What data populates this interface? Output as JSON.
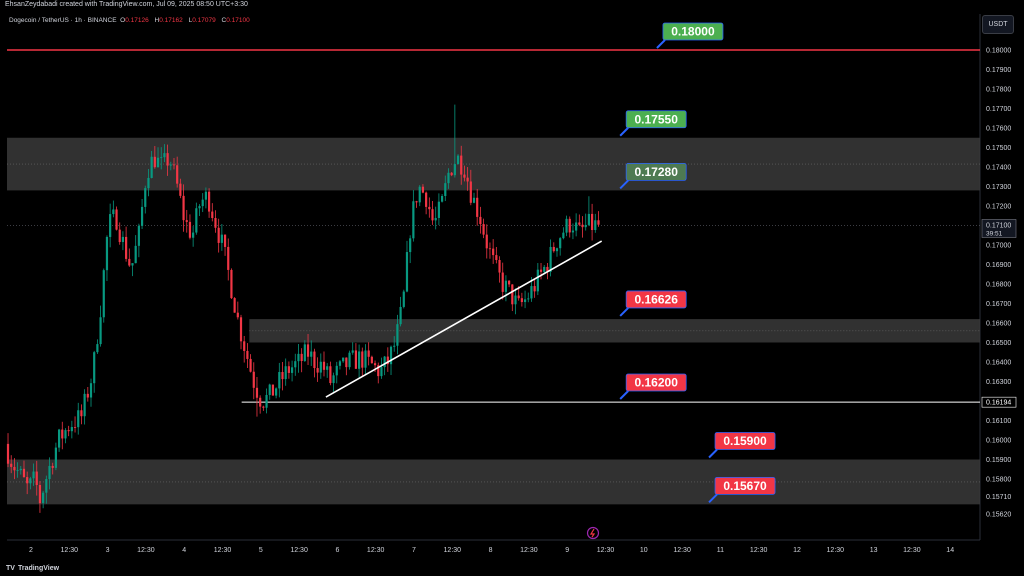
{
  "header": {
    "credit": "EhsanZeydabadi created with TradingView.com, Jul 09, 2025 08:50 UTC+3:30",
    "symbol": "Dogecoin / TetherUS · 1h · BINANCE",
    "ohlc": [
      {
        "k": "O",
        "v": "0.17126"
      },
      {
        "k": "H",
        "v": "0.17162"
      },
      {
        "k": "L",
        "v": "0.17079"
      },
      {
        "k": "C",
        "v": "0.17100"
      }
    ],
    "currency": "USDT"
  },
  "footer": {
    "brand": "TradingView"
  },
  "colors": {
    "up": "#089981",
    "down": "#f23645",
    "zone": "#3a3a3a",
    "label_green": "#4caf50",
    "label_red": "#f23645",
    "label_faded": "#4e7a52",
    "resistance_line": "#f23645",
    "pointer": "#2962ff"
  },
  "chart_data": {
    "type": "candlestick",
    "title": "",
    "xlabel": "",
    "ylabel": "",
    "price_axis": {
      "ticks": [
        "0.18000",
        "0.17900",
        "0.17800",
        "0.17700",
        "0.17600",
        "0.17500",
        "0.17400",
        "0.17300",
        "0.17200",
        "0.17000",
        "0.16900",
        "0.16800",
        "0.16700",
        "0.16600",
        "0.16500",
        "0.16400",
        "0.16300",
        "0.16100",
        "0.16000",
        "0.15900",
        "0.15800",
        "0.15710",
        "0.15620"
      ],
      "last_price": "0.17100",
      "countdown": "39:51",
      "level_tag": "0.16194"
    },
    "time_axis": {
      "ticks": [
        {
          "label": "2",
          "day": 2.0
        },
        {
          "label": "12:30",
          "day": 2.5
        },
        {
          "label": "3",
          "day": 3.0
        },
        {
          "label": "12:30",
          "day": 3.5
        },
        {
          "label": "4",
          "day": 4.0
        },
        {
          "label": "12:30",
          "day": 4.5
        },
        {
          "label": "5",
          "day": 5.0
        },
        {
          "label": "12:30",
          "day": 5.5
        },
        {
          "label": "6",
          "day": 6.0
        },
        {
          "label": "12:30",
          "day": 6.5
        },
        {
          "label": "7",
          "day": 7.0
        },
        {
          "label": "12:30",
          "day": 7.5
        },
        {
          "label": "8",
          "day": 8.0
        },
        {
          "label": "12:30",
          "day": 8.5
        },
        {
          "label": "9",
          "day": 9.0
        },
        {
          "label": "12:30",
          "day": 9.5
        },
        {
          "label": "10",
          "day": 10.0
        },
        {
          "label": "12:30",
          "day": 10.5
        },
        {
          "label": "11",
          "day": 11.0
        },
        {
          "label": "12:30",
          "day": 11.5
        },
        {
          "label": "12",
          "day": 12.0
        },
        {
          "label": "12:30",
          "day": 12.5
        },
        {
          "label": "13",
          "day": 13.0
        },
        {
          "label": "12:30",
          "day": 13.5
        },
        {
          "label": "14",
          "day": 14.0
        }
      ]
    },
    "zones": [
      {
        "top": 0.1755,
        "bottom": 0.1728
      },
      {
        "top": 0.1662,
        "bottom": 0.165
      },
      {
        "top": 0.159,
        "bottom": 0.1567
      }
    ],
    "horizontal_lines": [
      {
        "price": 0.18,
        "from_day": 1.7,
        "to_day": 14.4,
        "style": "resistance"
      },
      {
        "price": 0.16194,
        "from_day": 4.75,
        "to_day": 14.4,
        "style": "support"
      }
    ],
    "trendline": {
      "start": {
        "day": 5.85,
        "price": 0.1622
      },
      "end": {
        "day": 9.45,
        "price": 0.1702
      }
    },
    "labels": [
      {
        "text": "0.18000",
        "price": 0.18,
        "day": 10.25,
        "style": "green"
      },
      {
        "text": "0.17550",
        "price": 0.1755,
        "day": 9.77,
        "style": "green"
      },
      {
        "text": "0.17280",
        "price": 0.1728,
        "day": 9.77,
        "style": "faded"
      },
      {
        "text": "0.16626",
        "price": 0.16626,
        "day": 9.77,
        "style": "red"
      },
      {
        "text": "0.16200",
        "price": 0.162,
        "day": 9.77,
        "style": "red"
      },
      {
        "text": "0.15900",
        "price": 0.159,
        "day": 10.93,
        "style": "red"
      },
      {
        "text": "0.15670",
        "price": 0.1567,
        "day": 10.93,
        "style": "red"
      }
    ],
    "price_path": [
      [
        1.7,
        0.1598
      ],
      [
        1.8,
        0.1588
      ],
      [
        1.9,
        0.1582
      ],
      [
        2.0,
        0.1575
      ],
      [
        2.1,
        0.158
      ],
      [
        2.15,
        0.1568
      ],
      [
        2.25,
        0.1582
      ],
      [
        2.4,
        0.16
      ],
      [
        2.55,
        0.1608
      ],
      [
        2.7,
        0.1612
      ],
      [
        2.85,
        0.1635
      ],
      [
        2.95,
        0.1668
      ],
      [
        3.05,
        0.171
      ],
      [
        3.15,
        0.1715
      ],
      [
        3.25,
        0.17
      ],
      [
        3.35,
        0.1688
      ],
      [
        3.45,
        0.1705
      ],
      [
        3.55,
        0.1738
      ],
      [
        3.65,
        0.1745
      ],
      [
        3.75,
        0.174
      ],
      [
        3.85,
        0.1745
      ],
      [
        3.95,
        0.173
      ],
      [
        4.05,
        0.1712
      ],
      [
        4.15,
        0.1705
      ],
      [
        4.25,
        0.1722
      ],
      [
        4.35,
        0.1725
      ],
      [
        4.45,
        0.1712
      ],
      [
        4.55,
        0.1698
      ],
      [
        4.65,
        0.168
      ],
      [
        4.75,
        0.166
      ],
      [
        4.85,
        0.1645
      ],
      [
        4.95,
        0.163
      ],
      [
        5.05,
        0.162
      ],
      [
        5.15,
        0.1622
      ],
      [
        5.25,
        0.1628
      ],
      [
        5.4,
        0.1636
      ],
      [
        5.55,
        0.164
      ],
      [
        5.65,
        0.1645
      ],
      [
        5.75,
        0.164
      ],
      [
        5.85,
        0.1638
      ],
      [
        5.95,
        0.163
      ],
      [
        6.05,
        0.1635
      ],
      [
        6.2,
        0.164
      ],
      [
        6.35,
        0.1642
      ],
      [
        6.5,
        0.1638
      ],
      [
        6.6,
        0.1635
      ],
      [
        6.7,
        0.164
      ],
      [
        6.8,
        0.165
      ],
      [
        6.9,
        0.167
      ],
      [
        7.0,
        0.1712
      ],
      [
        7.1,
        0.173
      ],
      [
        7.2,
        0.1725
      ],
      [
        7.3,
        0.171
      ],
      [
        7.4,
        0.172
      ],
      [
        7.5,
        0.1738
      ],
      [
        7.6,
        0.1745
      ],
      [
        7.7,
        0.174
      ],
      [
        7.8,
        0.1725
      ],
      [
        7.9,
        0.1715
      ],
      [
        8.0,
        0.17
      ],
      [
        8.1,
        0.1688
      ],
      [
        8.2,
        0.168
      ],
      [
        8.3,
        0.1675
      ],
      [
        8.4,
        0.1668
      ],
      [
        8.5,
        0.1672
      ],
      [
        8.6,
        0.1678
      ],
      [
        8.7,
        0.1685
      ],
      [
        8.8,
        0.1692
      ],
      [
        8.9,
        0.1702
      ],
      [
        9.0,
        0.1708
      ],
      [
        9.1,
        0.1712
      ],
      [
        9.2,
        0.1706
      ],
      [
        9.3,
        0.171
      ],
      [
        9.45,
        0.171
      ]
    ],
    "spikes": [
      {
        "day": 7.55,
        "high": 0.1772
      },
      {
        "day": 9.3,
        "high": 0.1725
      }
    ],
    "lows": [
      {
        "day": 2.15,
        "low": 0.1565
      },
      {
        "day": 4.95,
        "low": 0.1612
      }
    ]
  }
}
